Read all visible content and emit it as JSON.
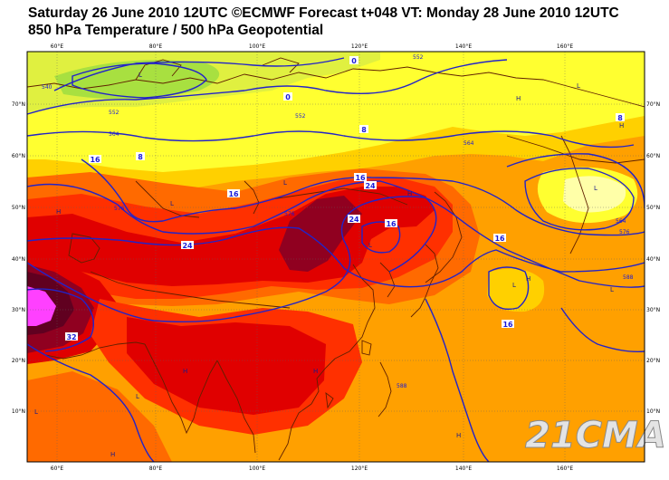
{
  "header": {
    "line1": "Saturday 26 June 2010 12UTC ©ECMWF Forecast t+048 VT: Monday 28 June 2010 12UTC",
    "line2": "850 hPa Temperature / 500 hPa Geopotential"
  },
  "lon_ticks": [
    "60°E",
    "80°E",
    "100°E",
    "120°E",
    "140°E",
    "160°E"
  ],
  "lat_ticks": [
    "70°N",
    "60°N",
    "50°N",
    "40°N",
    "30°N",
    "20°N",
    "10°N"
  ],
  "temp_labels": [
    "0",
    "0",
    "8",
    "8",
    "8",
    "16",
    "16",
    "16",
    "16",
    "16",
    "16",
    "24",
    "24",
    "24",
    "32"
  ],
  "geo_labels": [
    "540",
    "552",
    "564",
    "576",
    "552",
    "564",
    "576",
    "588",
    "552",
    "564",
    "576",
    "588"
  ],
  "pressure_centers": [
    "L",
    "L",
    "L",
    "L",
    "L",
    "L",
    "L",
    "L",
    "L",
    "L",
    "H",
    "H",
    "H",
    "H",
    "H",
    "H",
    "H",
    "H",
    "H"
  ],
  "watermark": "21CMA",
  "colors": {
    "green": "#a8e040",
    "yellow_green": "#e0f040",
    "yellow": "#ffff30",
    "light_yellow": "#ffffa8",
    "gold": "#ffd000",
    "orange": "#ffa000",
    "dark_orange": "#ff6a00",
    "red_orange": "#ff3000",
    "red": "#e00000",
    "dark_red": "#900020",
    "maroon": "#600020",
    "magenta": "#ff40ff",
    "contour_blue": "#2323c8",
    "coast_brown": "#602000",
    "grid_gray": "#606060"
  }
}
